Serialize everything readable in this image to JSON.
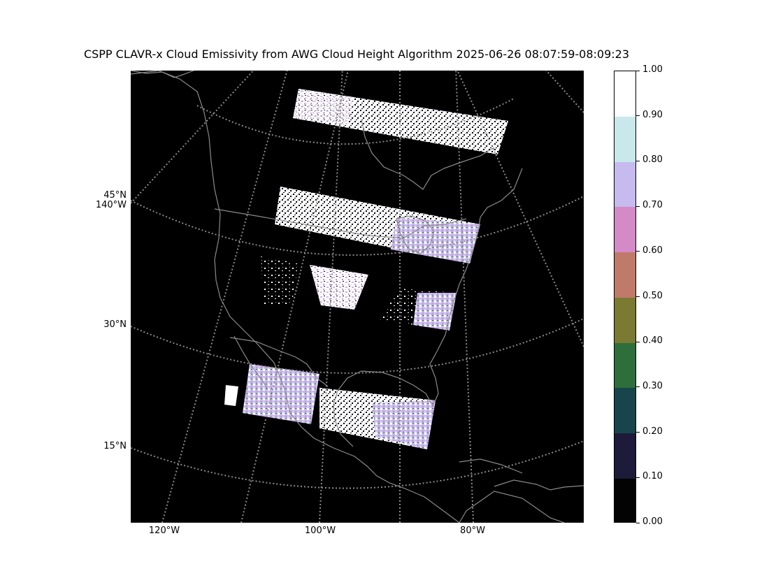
{
  "figure": {
    "title": "CSPP CLAVR-x Cloud Emissivity from AWG Cloud Height Algorithm 2025-06-26 08:07:59-08:09:23"
  },
  "map": {
    "background_color": "#000000",
    "coastline_color": "#8a8a8a",
    "gridline_color": "#8a8a8a",
    "lat_labels": [
      "45°N",
      "30°N",
      "15°N"
    ],
    "lon_left_label": "140°W",
    "lon_bottom_labels": [
      "120°W",
      "100°W",
      "80°W"
    ]
  },
  "colorbar": {
    "tick_labels": [
      "0.00",
      "0.10",
      "0.20",
      "0.30",
      "0.40",
      "0.50",
      "0.60",
      "0.70",
      "0.80",
      "0.90",
      "1.00"
    ],
    "colors": [
      "#030303",
      "#1e1a3a",
      "#18454c",
      "#2e6e3a",
      "#7a7a32",
      "#c07a6a",
      "#d48ac6",
      "#c6baee",
      "#c8e8ec",
      "#ffffff"
    ]
  }
}
